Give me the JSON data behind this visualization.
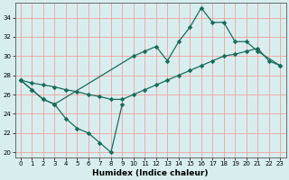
{
  "xlabel": "Humidex (Indice chaleur)",
  "xlim": [
    -0.5,
    23.5
  ],
  "ylim": [
    19.5,
    35.5
  ],
  "xticks": [
    0,
    1,
    2,
    3,
    4,
    5,
    6,
    7,
    8,
    9,
    10,
    11,
    12,
    13,
    14,
    15,
    16,
    17,
    18,
    19,
    20,
    21,
    22,
    23
  ],
  "yticks": [
    20,
    22,
    24,
    26,
    28,
    30,
    32,
    34
  ],
  "bg_color": "#d8eeee",
  "line_color": "#1a6b5a",
  "grid_color": "#f0a0a0",
  "line_a_x": [
    0,
    1,
    2,
    3,
    4,
    5,
    6,
    7,
    8,
    9
  ],
  "line_a_y": [
    27.5,
    26.5,
    25.5,
    25.0,
    23.5,
    22.5,
    22.0,
    21.0,
    20.0,
    25.0
  ],
  "line_b_x": [
    0,
    1,
    2,
    3,
    4,
    5,
    6,
    7,
    8,
    9,
    10,
    11,
    12,
    13,
    14,
    15,
    16,
    17,
    18,
    19,
    20,
    21,
    22,
    23
  ],
  "line_b_y": [
    27.5,
    27.2,
    27.0,
    26.8,
    26.5,
    26.3,
    26.0,
    25.8,
    25.5,
    25.5,
    26.0,
    26.5,
    27.0,
    27.5,
    28.0,
    28.5,
    29.0,
    29.5,
    30.0,
    30.2,
    30.5,
    30.8,
    29.5,
    29.0
  ],
  "line_c_x": [
    0,
    1,
    2,
    3,
    10,
    11,
    12,
    13,
    14,
    15,
    16,
    17,
    18,
    19,
    20,
    21,
    23
  ],
  "line_c_y": [
    27.5,
    26.5,
    25.5,
    25.0,
    30.0,
    30.5,
    31.0,
    29.5,
    31.5,
    33.0,
    35.0,
    33.5,
    33.5,
    31.5,
    31.5,
    30.5,
    29.0
  ]
}
